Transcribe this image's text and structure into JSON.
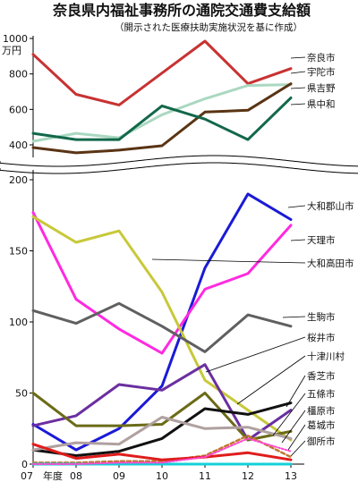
{
  "chart_data": {
    "type": "line",
    "title": "奈良県内福祉事務所の通院交通費支給額",
    "subtitle": "（開示された医療扶助実施状況を基に作成）",
    "unit": "万円",
    "x": [
      "07",
      "08",
      "09",
      "10",
      "11",
      "12",
      "13"
    ],
    "x_tick_labels": [
      "07",
      "08",
      "09",
      "10",
      "11",
      "12",
      "13"
    ],
    "x_suffix": "年度",
    "axis_break": true,
    "upper_panel": {
      "ylim": [
        330,
        1000
      ],
      "yticks": [
        400,
        600,
        800,
        1000
      ],
      "series": [
        {
          "name": "奈良市",
          "color": "#c83232",
          "width": 3,
          "dash": "",
          "values": [
            910,
            685,
            625,
            805,
            985,
            745,
            830
          ]
        },
        {
          "name": "宇陀市",
          "color": "#aad8c0",
          "width": 3,
          "dash": "",
          "values": [
            420,
            465,
            440,
            570,
            660,
            735,
            740
          ]
        },
        {
          "name": "県吉野",
          "color": "#5a3414",
          "width": 3,
          "dash": "",
          "values": [
            385,
            355,
            370,
            395,
            585,
            595,
            745
          ]
        },
        {
          "name": "県中和",
          "color": "#12684a",
          "width": 3,
          "dash": "",
          "values": [
            465,
            430,
            430,
            620,
            545,
            430,
            665
          ]
        }
      ]
    },
    "lower_panel": {
      "ylim": [
        0,
        200
      ],
      "yticks": [
        0,
        50,
        100,
        150,
        200
      ],
      "series": [
        {
          "name": "大和郡山市",
          "color": "#1a1ad8",
          "width": 3,
          "dash": "",
          "values": [
            28,
            10,
            25,
            55,
            138,
            190,
            172
          ]
        },
        {
          "name": "天理市",
          "color": "#ff2ae0",
          "width": 3,
          "dash": "",
          "values": [
            177,
            116,
            95,
            78,
            123,
            134,
            168
          ]
        },
        {
          "name": "大和高田市",
          "color": "#c8c83a",
          "width": 3,
          "dash": "",
          "values": [
            174,
            156,
            164,
            121,
            59,
            38,
            17
          ]
        },
        {
          "name": "生駒市",
          "color": "#606060",
          "width": 3,
          "dash": "",
          "values": [
            108,
            99,
            113,
            97,
            79,
            105,
            97
          ]
        },
        {
          "name": "桜井市",
          "color": "#6b2fa0",
          "width": 3,
          "dash": "",
          "values": [
            27,
            34,
            56,
            52,
            70,
            17,
            38
          ]
        },
        {
          "name": "十津川村",
          "color": "#6b6b18",
          "width": 3,
          "dash": "",
          "values": [
            50,
            27,
            27,
            28,
            50,
            17,
            23
          ]
        },
        {
          "name": "香芝市",
          "color": "#111111",
          "width": 3,
          "dash": "",
          "values": [
            10,
            6,
            9,
            18,
            39,
            35,
            43
          ]
        },
        {
          "name": "五條市",
          "color": "#c07830",
          "width": 2.5,
          "dash": "4,3",
          "values": [
            1,
            1,
            2,
            2,
            6,
            20,
            5
          ]
        },
        {
          "name": "橿原市",
          "color": "#b0a0a0",
          "width": 3,
          "dash": "",
          "values": [
            10,
            15,
            14,
            33,
            25,
            26,
            18
          ]
        },
        {
          "name": "葛城市",
          "color": "#e01c1c",
          "width": 3,
          "dash": "",
          "values": [
            14,
            4,
            7,
            3,
            5,
            8,
            3
          ]
        },
        {
          "name": "御所市",
          "color": "#12d0d8",
          "width": 3,
          "dash": "",
          "values": [
            0,
            0,
            0,
            0,
            0,
            0,
            0
          ]
        },
        {
          "name": "",
          "color": "#ff48d0",
          "width": 2,
          "dash": "2,2",
          "values": [
            0,
            0,
            1,
            1,
            5,
            18,
            9
          ]
        }
      ]
    }
  }
}
